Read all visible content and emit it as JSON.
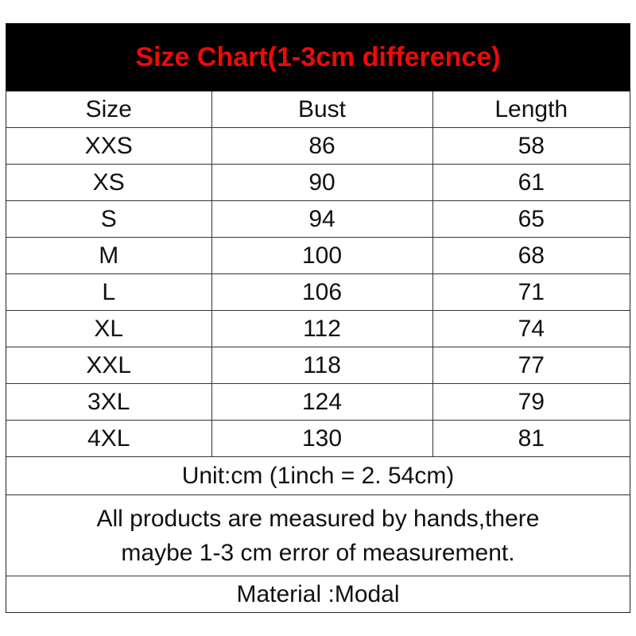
{
  "title": "Size Chart(1-3cm difference)",
  "title_color": "#ee0a0a",
  "columns": [
    "Size",
    "Bust",
    "Length"
  ],
  "rows": [
    [
      "XXS",
      "86",
      "58"
    ],
    [
      "XS",
      "90",
      "61"
    ],
    [
      "S",
      "94",
      "65"
    ],
    [
      "M",
      "100",
      "68"
    ],
    [
      "L",
      "106",
      "71"
    ],
    [
      "XL",
      "112",
      "74"
    ],
    [
      "XXL",
      "118",
      "77"
    ],
    [
      "3XL",
      "124",
      "79"
    ],
    [
      "4XL",
      "130",
      "81"
    ]
  ],
  "unit_note": "Unit:cm (1inch = 2. 54cm)",
  "measure_note_line1": "All products are measured by hands,there",
  "measure_note_line2": "maybe 1-3 cm error of measurement.",
  "material": "Material :Modal"
}
